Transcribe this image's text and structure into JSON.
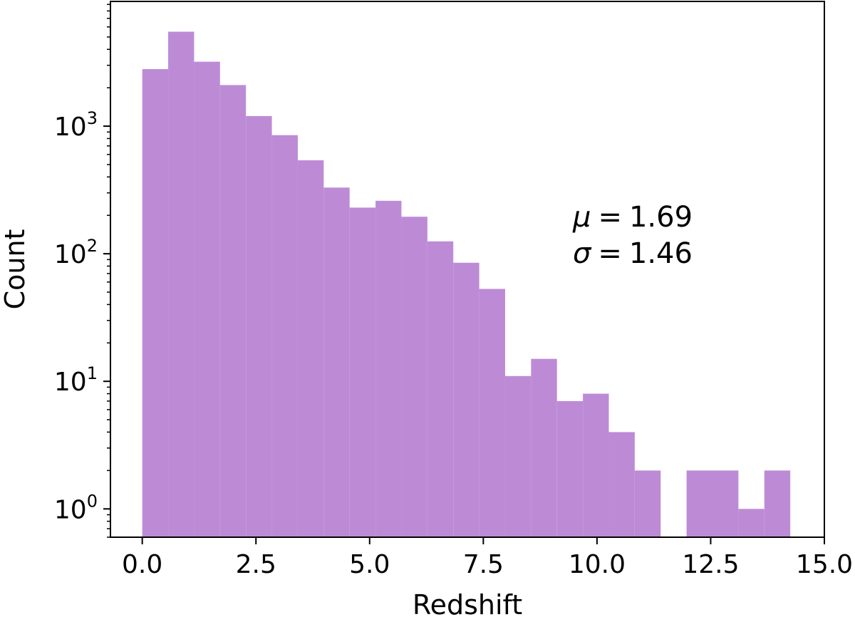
{
  "chart_data": {
    "type": "bar",
    "title": "",
    "xlabel": "Redshift",
    "ylabel": "Count",
    "xlim": [
      -0.7,
      15.0
    ],
    "ylim": [
      0.6,
      9500
    ],
    "y_scale": "log",
    "x_ticks": [
      0.0,
      2.5,
      5.0,
      7.5,
      10.0,
      12.5,
      15.0
    ],
    "x_tick_labels": [
      "0.0",
      "2.5",
      "5.0",
      "7.5",
      "10.0",
      "12.5",
      "15.0"
    ],
    "y_ticks": [
      1,
      10,
      100,
      1000
    ],
    "y_tick_labels": [
      {
        "base": "10",
        "exp": "0"
      },
      {
        "base": "10",
        "exp": "1"
      },
      {
        "base": "10",
        "exp": "2"
      },
      {
        "base": "10",
        "exp": "3"
      }
    ],
    "bin_edges": [
      0.0,
      0.57,
      1.14,
      1.71,
      2.28,
      2.85,
      3.42,
      3.99,
      4.56,
      5.13,
      5.7,
      6.27,
      6.84,
      7.41,
      7.98,
      8.55,
      9.12,
      9.69,
      10.26,
      10.83,
      11.4,
      11.97,
      12.54,
      13.11,
      13.68,
      14.25
    ],
    "counts": [
      2800,
      5500,
      3200,
      2100,
      1200,
      850,
      540,
      330,
      230,
      260,
      195,
      125,
      85,
      53,
      11,
      15,
      7,
      8,
      4,
      2,
      0,
      2,
      2,
      1,
      2
    ],
    "grid": false,
    "legend": "none",
    "bar_color": "#bd8bd6",
    "annotations": {
      "mu_symbol": "μ",
      "mu_value": "1.69",
      "sigma_symbol": "σ",
      "sigma_value": "1.46",
      "equals": "="
    }
  }
}
